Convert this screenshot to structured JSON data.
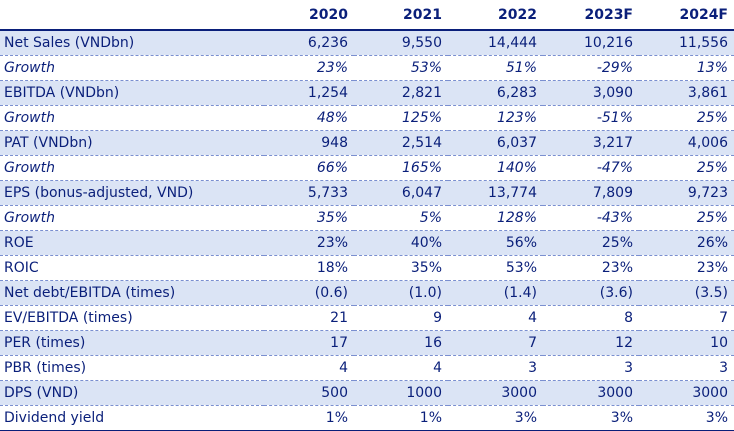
{
  "table": {
    "corner": "",
    "years": [
      "2020",
      "2021",
      "2022",
      "2023F",
      "2024F"
    ],
    "rows": [
      {
        "label": "Net Sales (VNDbn)",
        "values": [
          "6,236",
          "9,550",
          "14,444",
          "10,216",
          "11,556"
        ],
        "shaded": true,
        "italic": false
      },
      {
        "label": "Growth",
        "values": [
          "23%",
          "53%",
          "51%",
          "-29%",
          "13%"
        ],
        "shaded": false,
        "italic": true
      },
      {
        "label": "EBITDA (VNDbn)",
        "values": [
          "1,254",
          "2,821",
          "6,283",
          "3,090",
          "3,861"
        ],
        "shaded": true,
        "italic": false
      },
      {
        "label": "Growth",
        "values": [
          "48%",
          "125%",
          "123%",
          "-51%",
          "25%"
        ],
        "shaded": false,
        "italic": true
      },
      {
        "label": "PAT (VNDbn)",
        "values": [
          "948",
          "2,514",
          "6,037",
          "3,217",
          "4,006"
        ],
        "shaded": true,
        "italic": false
      },
      {
        "label": "Growth",
        "values": [
          "66%",
          "165%",
          "140%",
          "-47%",
          "25%"
        ],
        "shaded": false,
        "italic": true
      },
      {
        "label": "EPS (bonus-adjusted, VND)",
        "values": [
          "5,733",
          "6,047",
          "13,774",
          "7,809",
          "9,723"
        ],
        "shaded": true,
        "italic": false
      },
      {
        "label": "Growth",
        "values": [
          "35%",
          "5%",
          "128%",
          "-43%",
          "25%"
        ],
        "shaded": false,
        "italic": true
      },
      {
        "label": "ROE",
        "values": [
          "23%",
          "40%",
          "56%",
          "25%",
          "26%"
        ],
        "shaded": true,
        "italic": false
      },
      {
        "label": "ROIC",
        "values": [
          "18%",
          "35%",
          "53%",
          "23%",
          "23%"
        ],
        "shaded": false,
        "italic": false
      },
      {
        "label": "Net debt/EBITDA (times)",
        "values": [
          "(0.6)",
          "(1.0)",
          "(1.4)",
          "(3.6)",
          "(3.5)"
        ],
        "shaded": true,
        "italic": false
      },
      {
        "label": "EV/EBITDA (times)",
        "values": [
          "21",
          "9",
          "4",
          "8",
          "7"
        ],
        "shaded": false,
        "italic": false
      },
      {
        "label": "PER (times)",
        "values": [
          "17",
          "16",
          "7",
          "12",
          "10"
        ],
        "shaded": true,
        "italic": false
      },
      {
        "label": "PBR (times)",
        "values": [
          "4",
          "4",
          "3",
          "3",
          "3"
        ],
        "shaded": false,
        "italic": false
      },
      {
        "label": "DPS (VND)",
        "values": [
          "500",
          "1000",
          "3000",
          "3000",
          "3000"
        ],
        "shaded": true,
        "italic": false
      },
      {
        "label": "Dividend yield",
        "values": [
          "1%",
          "1%",
          "3%",
          "3%",
          "3%"
        ],
        "shaded": false,
        "italic": false
      }
    ]
  },
  "colors": {
    "text": "#0a1f7a",
    "row_shade": "#dbe4f5",
    "rule": "#7a8fd0"
  }
}
